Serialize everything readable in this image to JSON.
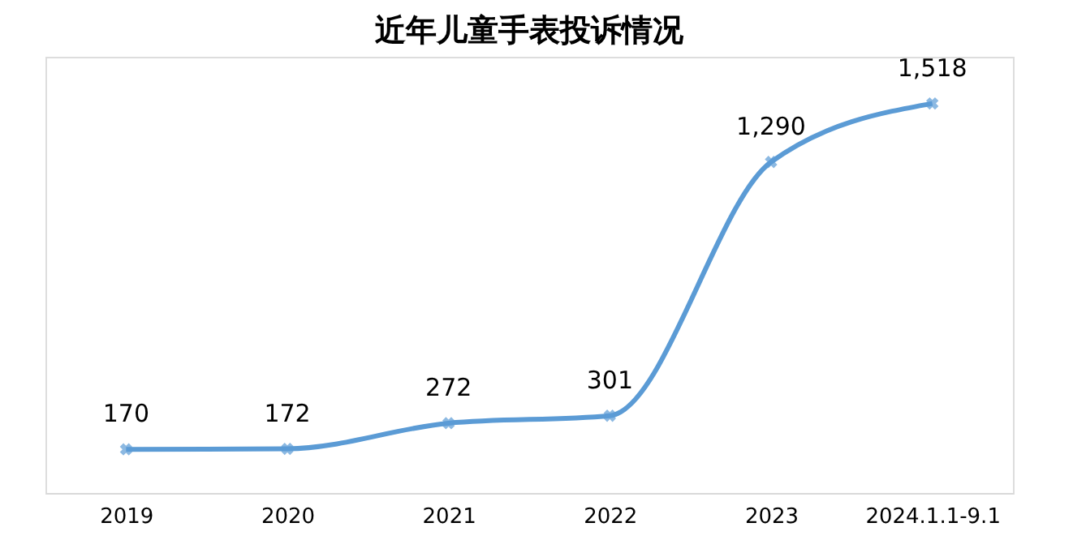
{
  "chart_data": {
    "type": "line",
    "title": "近年儿童手表投诉情况",
    "categories": [
      "2019",
      "2020",
      "2021",
      "2022",
      "2023",
      "2024.1.1-9.1"
    ],
    "series": [
      {
        "color": "#5b9bd5",
        "values": [
          170,
          172,
          272,
          301,
          1290,
          1518
        ],
        "value_labels": [
          "170",
          "172",
          "272",
          "301",
          "1,290",
          "1,518"
        ]
      }
    ],
    "ylim": [
      0,
      1700
    ],
    "tick_labels": "x",
    "grid": false,
    "marker": "cross",
    "line_style": "solid"
  }
}
